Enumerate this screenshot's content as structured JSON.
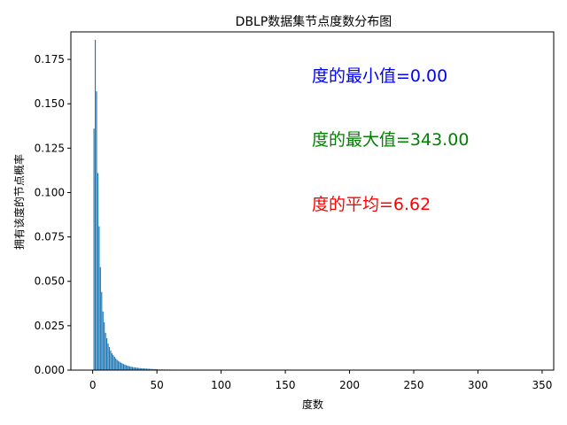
{
  "chart_data": {
    "type": "bar",
    "title": "DBLP数据集节点度数分布图",
    "xlabel": "度数",
    "ylabel": "拥有该度的节点概率",
    "xlim": [
      -17,
      359
    ],
    "ylim": [
      0,
      0.1905
    ],
    "xticks": [
      0,
      50,
      100,
      150,
      200,
      250,
      300,
      350
    ],
    "yticks": [
      0.0,
      0.025,
      0.05,
      0.075,
      0.1,
      0.125,
      0.15,
      0.175
    ],
    "bar_color": "#1f77b4",
    "grid": false,
    "x": [
      1,
      2,
      3,
      4,
      5,
      6,
      7,
      8,
      9,
      10,
      11,
      12,
      13,
      14,
      15,
      16,
      17,
      18,
      19,
      20,
      21,
      22,
      23,
      24,
      25,
      26,
      27,
      28,
      29,
      30,
      31,
      32,
      33,
      34,
      35,
      36,
      37,
      38,
      39,
      40,
      41,
      42,
      43,
      44,
      45,
      46,
      47,
      48,
      49,
      50,
      52,
      54,
      56,
      58,
      60,
      62,
      64,
      66,
      68,
      70,
      72,
      74,
      76,
      78,
      80,
      85,
      90,
      95,
      100,
      110,
      120,
      130,
      150,
      200,
      343
    ],
    "values": [
      0.136,
      0.186,
      0.157,
      0.111,
      0.081,
      0.058,
      0.044,
      0.033,
      0.027,
      0.021,
      0.018,
      0.015,
      0.013,
      0.011,
      0.0095,
      0.0085,
      0.0075,
      0.0066,
      0.0058,
      0.0052,
      0.0047,
      0.0042,
      0.0038,
      0.0034,
      0.0031,
      0.0028,
      0.0025,
      0.0023,
      0.0021,
      0.0019,
      0.0017,
      0.0016,
      0.0015,
      0.0014,
      0.0013,
      0.0012,
      0.0011,
      0.00105,
      0.001,
      0.00095,
      0.0009,
      0.00085,
      0.0008,
      0.00075,
      0.0007,
      0.00065,
      0.0006,
      0.00058,
      0.00055,
      0.0005,
      0.00046,
      0.00042,
      0.00039,
      0.00036,
      0.00033,
      0.0003,
      0.00028,
      0.00026,
      0.00024,
      0.00022,
      0.0002,
      0.00018,
      0.00016,
      0.00014,
      0.00012,
      0.0001,
      8e-05,
      6e-05,
      5e-05,
      4e-05,
      3e-05,
      2e-05,
      1e-05,
      5e-06,
      3e-06
    ],
    "annotations": [
      {
        "text": "度的最小值=0.00",
        "color": "#0000ff"
      },
      {
        "text": "度的最大值=343.00",
        "color": "#008000"
      },
      {
        "text": "度的平均=6.62",
        "color": "#ff0000"
      }
    ]
  }
}
